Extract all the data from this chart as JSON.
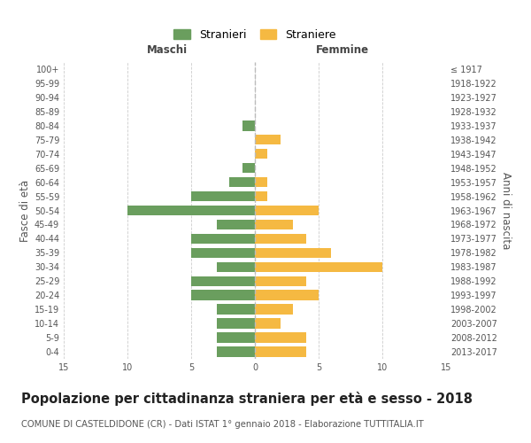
{
  "age_groups": [
    "0-4",
    "5-9",
    "10-14",
    "15-19",
    "20-24",
    "25-29",
    "30-34",
    "35-39",
    "40-44",
    "45-49",
    "50-54",
    "55-59",
    "60-64",
    "65-69",
    "70-74",
    "75-79",
    "80-84",
    "85-89",
    "90-94",
    "95-99",
    "100+"
  ],
  "birth_years": [
    "2013-2017",
    "2008-2012",
    "2003-2007",
    "1998-2002",
    "1993-1997",
    "1988-1992",
    "1983-1987",
    "1978-1982",
    "1973-1977",
    "1968-1972",
    "1963-1967",
    "1958-1962",
    "1953-1957",
    "1948-1952",
    "1943-1947",
    "1938-1942",
    "1933-1937",
    "1928-1932",
    "1923-1927",
    "1918-1922",
    "≤ 1917"
  ],
  "males": [
    3,
    3,
    3,
    3,
    5,
    5,
    3,
    5,
    5,
    3,
    10,
    5,
    2,
    1,
    0,
    0,
    1,
    0,
    0,
    0,
    0
  ],
  "females": [
    4,
    4,
    2,
    3,
    5,
    4,
    10,
    6,
    4,
    3,
    5,
    1,
    1,
    0,
    1,
    2,
    0,
    0,
    0,
    0,
    0
  ],
  "male_color": "#6a9e5e",
  "female_color": "#f5b942",
  "grid_color": "#cccccc",
  "title": "Popolazione per cittadinanza straniera per età e sesso - 2018",
  "subtitle": "COMUNE DI CASTELDIDONE (CR) - Dati ISTAT 1° gennaio 2018 - Elaborazione TUTTITALIA.IT",
  "xlabel_left": "Maschi",
  "xlabel_right": "Femmine",
  "ylabel_left": "Fasce di età",
  "ylabel_right": "Anni di nascita",
  "legend_males": "Stranieri",
  "legend_females": "Straniere",
  "xlim": 15,
  "title_fontsize": 10.5,
  "subtitle_fontsize": 7.2,
  "axis_label_fontsize": 8.5,
  "tick_fontsize": 7.0
}
